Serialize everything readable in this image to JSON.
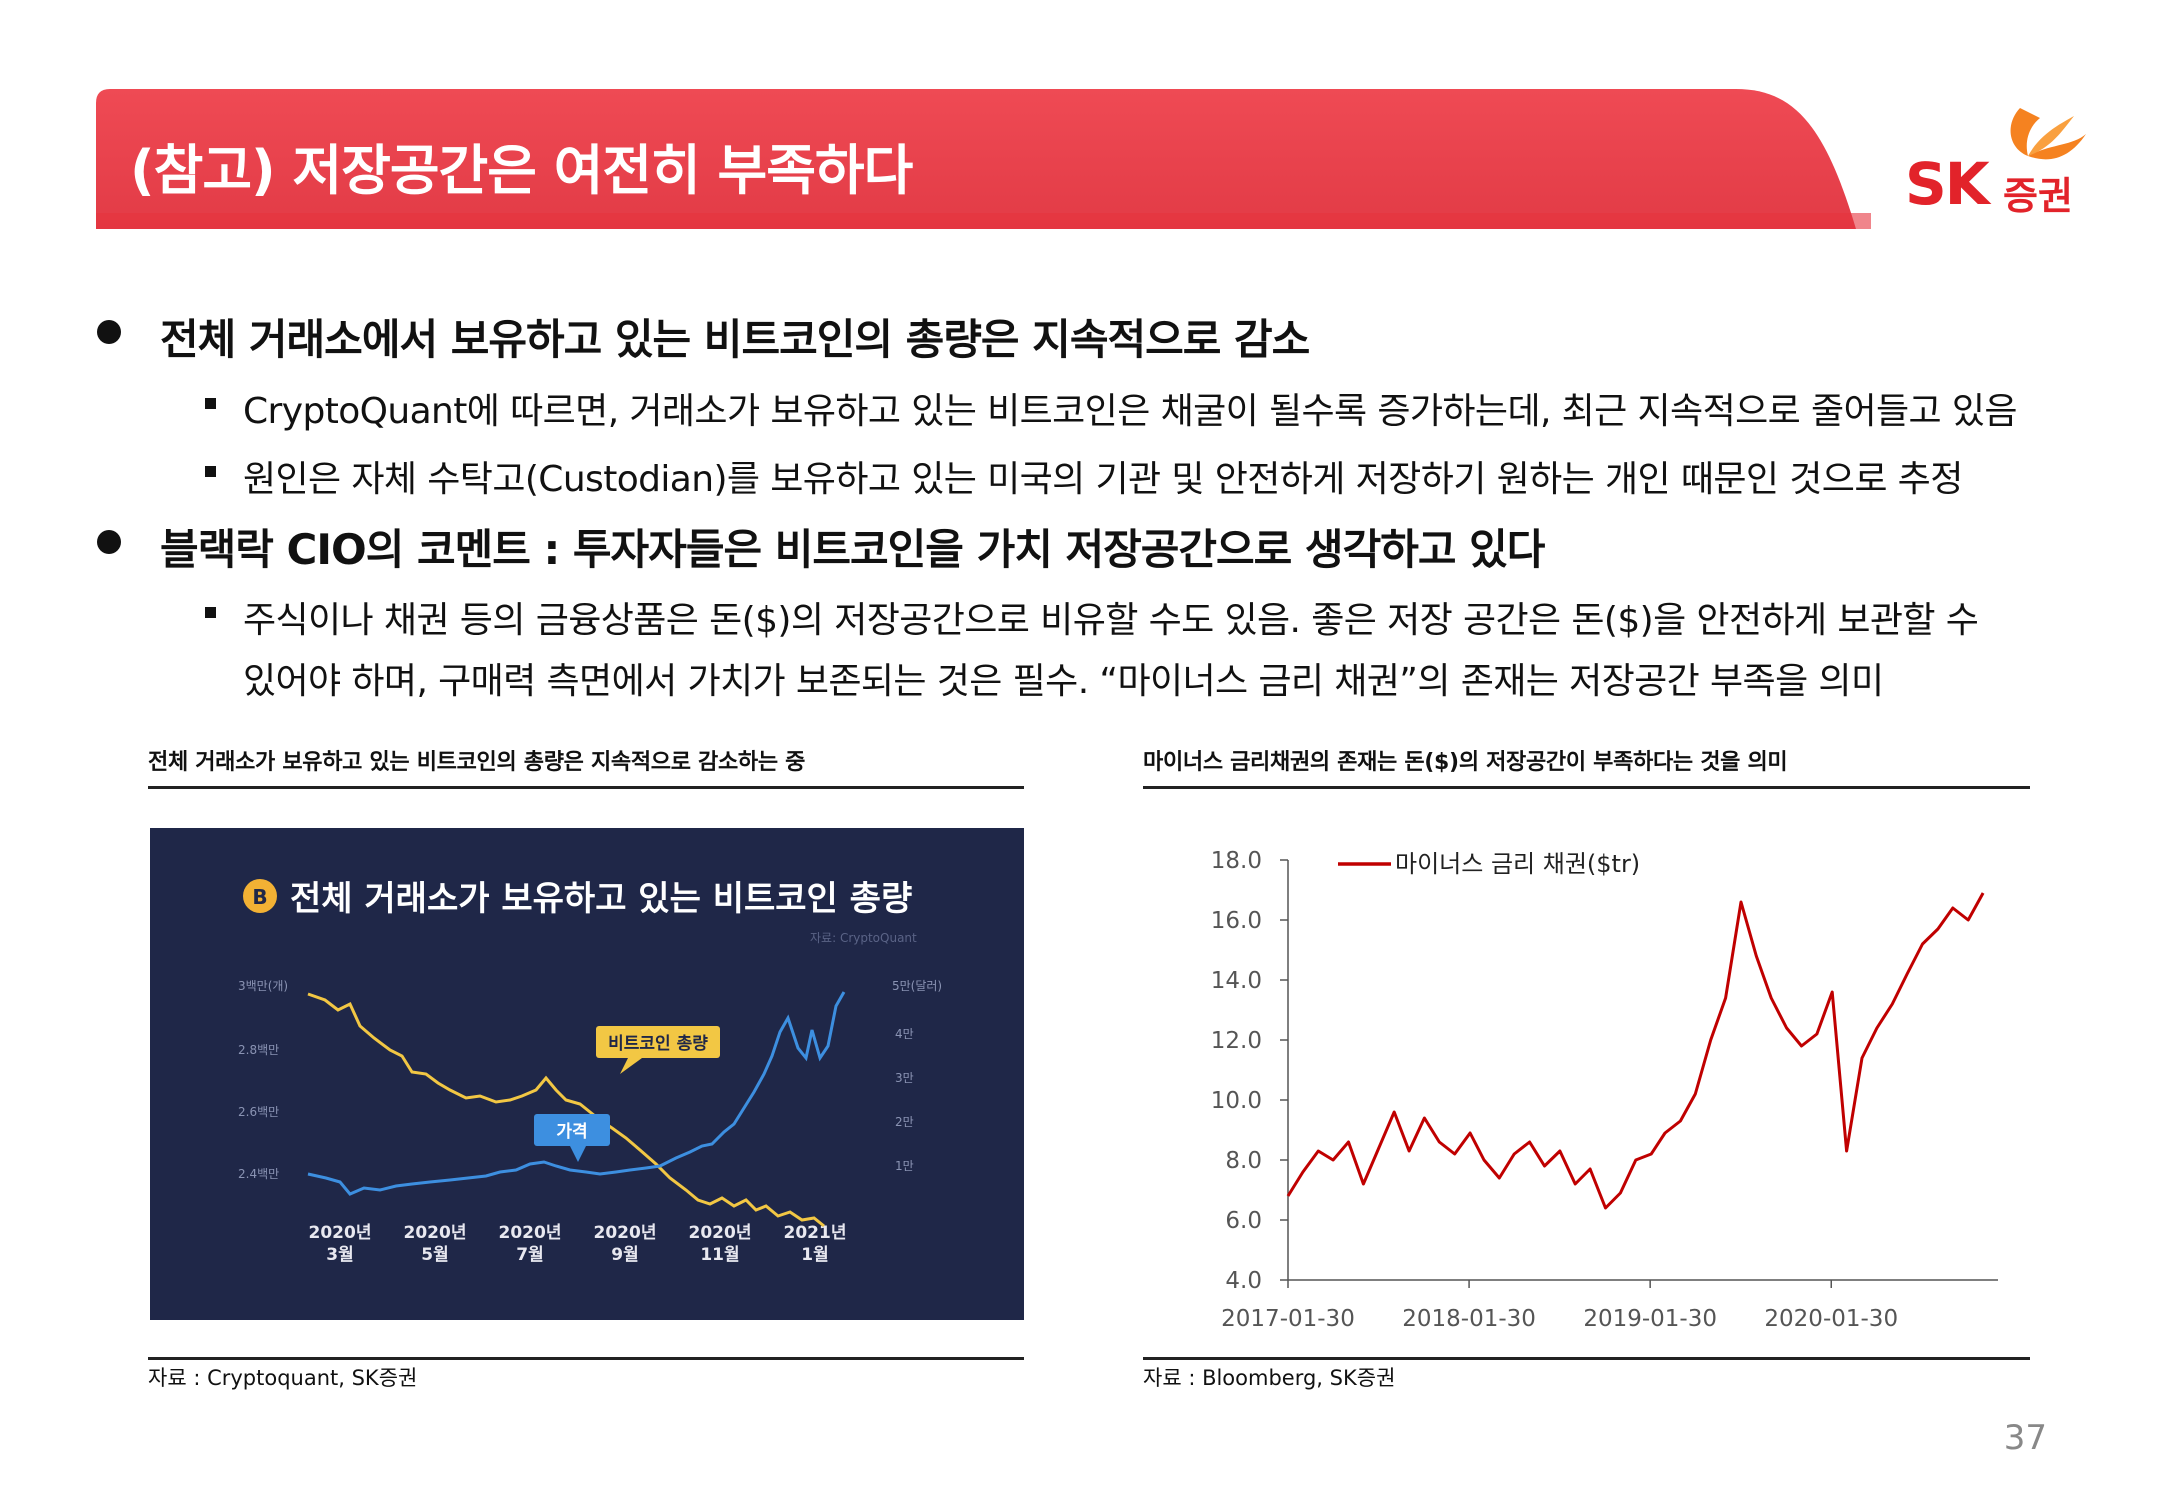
{
  "header": {
    "title": "(참고) 저장공간은 여전히 부족하다"
  },
  "logo": {
    "brand": "SK",
    "sub": "증권",
    "color": "#e2232a"
  },
  "bullets": [
    {
      "text": "전체 거래소에서 보유하고 있는 비트코인의 총량은 지속적으로 감소",
      "subs": [
        "CryptoQuant에 따르면, 거래소가 보유하고 있는 비트코인은 채굴이 될수록 증가하는데, 최근 지속적으로 줄어들고 있음",
        "원인은 자체 수탁고(Custodian)를 보유하고 있는 미국의 기관 및 안전하게 저장하기 원하는 개인 때문인 것으로 추정"
      ]
    },
    {
      "text": "블랙락 CIO의 코멘트 : 투자자들은 비트코인을 가치 저장공간으로 생각하고 있다",
      "subs": [
        "주식이나 채권 등의 금융상품은 돈($)의 저장공간으로  비유할 수도 있음. 좋은 저장 공간은 돈($)을 안전하게 보관할 수",
        "있어야 하며, 구매력 측면에서 가치가 보존되는 것은 필수. “마이너스 금리 채권”의 존재는 저장공간 부족을 의미"
      ]
    }
  ],
  "left_panel": {
    "caption": "전체 거래소가 보유하고 있는 비트코인의 총량은 지속적으로 감소하는 중",
    "source": "자료 : Cryptoquant, SK증권",
    "image": {
      "title": "전체 거래소가 보유하고 있는 비트코인 총량",
      "credit": "자료: CryptoQuant",
      "left_unit": "3백만(개)",
      "right_unit": "5만(달러)",
      "left_ticks": [
        "2.8백만",
        "2.6백만",
        "2.4백만"
      ],
      "right_ticks": [
        "4만",
        "3만",
        "2만",
        "1만"
      ],
      "x_labels": [
        {
          "year": "2020년",
          "month": "3월"
        },
        {
          "year": "2020년",
          "month": "5월"
        },
        {
          "year": "2020년",
          "month": "7월"
        },
        {
          "year": "2020년",
          "month": "9월"
        },
        {
          "year": "2020년",
          "month": "11월"
        },
        {
          "year": "2021년",
          "month": "1월"
        }
      ],
      "label_total": "비트코인 총량",
      "label_price": "가격",
      "colors": {
        "bg": "#1f2748",
        "total": "#f2c744",
        "price": "#3d8fe0"
      }
    }
  },
  "right_panel": {
    "caption": "마이너스 금리채권의 존재는 돈($)의 저장공간이 부족하다는 것을 의미",
    "source": "자료 : Bloomberg, SK증권"
  },
  "chart_data": {
    "type": "line",
    "title": "",
    "xlabel": "",
    "ylabel": "",
    "ylim": [
      4.0,
      18.0
    ],
    "yticks": [
      "4.0",
      "6.0",
      "8.0",
      "10.0",
      "12.0",
      "14.0",
      "16.0",
      "18.0"
    ],
    "xticks": [
      "2017-01-30",
      "2018-01-30",
      "2019-01-30",
      "2020-01-30"
    ],
    "legend": "top-left",
    "series": [
      {
        "name": "마이너스 금리 채권($tr)",
        "color": "#c00000",
        "points": [
          [
            "2017-01-30",
            6.8
          ],
          [
            "2017-03-01",
            7.6
          ],
          [
            "2017-04-01",
            8.3
          ],
          [
            "2017-05-01",
            8.0
          ],
          [
            "2017-06-01",
            8.6
          ],
          [
            "2017-07-01",
            7.2
          ],
          [
            "2017-08-01",
            8.4
          ],
          [
            "2017-09-01",
            9.6
          ],
          [
            "2017-10-01",
            8.3
          ],
          [
            "2017-11-01",
            9.4
          ],
          [
            "2017-12-01",
            8.6
          ],
          [
            "2018-01-01",
            8.2
          ],
          [
            "2018-02-01",
            8.9
          ],
          [
            "2018-03-01",
            8.0
          ],
          [
            "2018-04-01",
            7.4
          ],
          [
            "2018-05-01",
            8.2
          ],
          [
            "2018-06-01",
            8.6
          ],
          [
            "2018-07-01",
            7.8
          ],
          [
            "2018-08-01",
            8.3
          ],
          [
            "2018-09-01",
            7.2
          ],
          [
            "2018-10-01",
            7.7
          ],
          [
            "2018-11-01",
            6.4
          ],
          [
            "2018-12-01",
            6.9
          ],
          [
            "2019-01-01",
            8.0
          ],
          [
            "2019-02-01",
            8.2
          ],
          [
            "2019-03-01",
            8.9
          ],
          [
            "2019-04-01",
            9.3
          ],
          [
            "2019-05-01",
            10.2
          ],
          [
            "2019-06-01",
            12.0
          ],
          [
            "2019-07-01",
            13.4
          ],
          [
            "2019-08-01",
            16.6
          ],
          [
            "2019-09-01",
            14.8
          ],
          [
            "2019-10-01",
            13.4
          ],
          [
            "2019-11-01",
            12.4
          ],
          [
            "2019-12-01",
            11.8
          ],
          [
            "2020-01-01",
            12.2
          ],
          [
            "2020-02-01",
            13.6
          ],
          [
            "2020-03-01",
            8.3
          ],
          [
            "2020-04-01",
            11.4
          ],
          [
            "2020-05-01",
            12.4
          ],
          [
            "2020-06-01",
            13.2
          ],
          [
            "2020-07-01",
            14.2
          ],
          [
            "2020-08-01",
            15.2
          ],
          [
            "2020-09-01",
            15.7
          ],
          [
            "2020-10-01",
            16.4
          ],
          [
            "2020-11-01",
            16.0
          ],
          [
            "2020-12-01",
            16.9
          ]
        ]
      }
    ]
  },
  "page_number": "37"
}
